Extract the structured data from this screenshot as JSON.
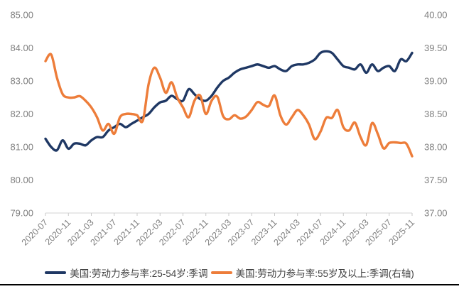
{
  "chart_data": {
    "type": "line",
    "title": "",
    "x": [
      "2020-07",
      "2020-08",
      "2020-09",
      "2020-10",
      "2020-11",
      "2020-12",
      "2021-01",
      "2021-02",
      "2021-03",
      "2021-04",
      "2021-05",
      "2021-06",
      "2021-07",
      "2021-08",
      "2021-09",
      "2021-10",
      "2021-11",
      "2021-12",
      "2022-01",
      "2022-02",
      "2022-03",
      "2022-04",
      "2022-05",
      "2022-06",
      "2022-07",
      "2022-08",
      "2022-09",
      "2022-10",
      "2022-11",
      "2022-12",
      "2023-01",
      "2023-02",
      "2023-03",
      "2023-04",
      "2023-05",
      "2023-06",
      "2023-07",
      "2023-08",
      "2023-09",
      "2023-10",
      "2023-11",
      "2023-12",
      "2024-01",
      "2024-02",
      "2024-03",
      "2024-04",
      "2024-05",
      "2024-06",
      "2024-07",
      "2024-08",
      "2024-09",
      "2024-10",
      "2024-11",
      "2024-12",
      "2025-01",
      "2025-02",
      "2025-03",
      "2025-04",
      "2025-05",
      "2025-06",
      "2025-07",
      "2025-08",
      "2025-09",
      "2025-10",
      "2025-11"
    ],
    "x_tick_labels": [
      "2020-07",
      "2020-11",
      "2021-03",
      "2021-07",
      "2021-11",
      "2022-03",
      "2022-07",
      "2022-11",
      "2023-03",
      "2023-07",
      "2023-11",
      "2024-03",
      "2024-07",
      "2024-11",
      "2025-03",
      "2025-07",
      "2025-11"
    ],
    "series": [
      {
        "name": "美国:劳动力参与率:25-54岁:季调",
        "axis": "left",
        "color": "#1f3864",
        "values": [
          81.25,
          81.0,
          80.9,
          81.2,
          80.95,
          81.1,
          81.1,
          81.05,
          81.2,
          81.3,
          81.3,
          81.5,
          81.6,
          81.7,
          81.6,
          81.7,
          81.8,
          81.9,
          82.0,
          82.2,
          82.35,
          82.4,
          82.55,
          82.45,
          82.4,
          82.75,
          82.6,
          82.45,
          82.4,
          82.55,
          82.8,
          83.0,
          83.1,
          83.25,
          83.35,
          83.4,
          83.45,
          83.5,
          83.45,
          83.4,
          83.45,
          83.35,
          83.3,
          83.45,
          83.5,
          83.5,
          83.55,
          83.65,
          83.85,
          83.9,
          83.85,
          83.65,
          83.45,
          83.4,
          83.35,
          83.5,
          83.25,
          83.5,
          83.3,
          83.4,
          83.45,
          83.3,
          83.65,
          83.6,
          83.85
        ]
      },
      {
        "name": "美国:劳动力参与率:55岁及以上:季调(右轴)",
        "axis": "right",
        "color": "#ed7d3a",
        "values": [
          39.3,
          39.4,
          39.05,
          38.8,
          38.75,
          38.75,
          38.77,
          38.7,
          38.6,
          38.45,
          38.25,
          38.35,
          38.2,
          38.45,
          38.5,
          38.5,
          38.48,
          38.4,
          38.95,
          39.2,
          39.05,
          38.82,
          38.98,
          38.75,
          38.6,
          38.45,
          38.7,
          38.78,
          38.5,
          38.7,
          38.76,
          38.47,
          38.42,
          38.48,
          38.43,
          38.46,
          38.56,
          38.68,
          38.64,
          38.62,
          38.78,
          38.48,
          38.34,
          38.45,
          38.56,
          38.48,
          38.34,
          38.12,
          38.23,
          38.44,
          38.44,
          38.56,
          38.3,
          38.25,
          38.37,
          38.15,
          38.03,
          38.36,
          38.2,
          37.98,
          38.06,
          38.07,
          38.06,
          38.05,
          37.86
        ]
      }
    ],
    "left_axis": {
      "min": 79.0,
      "max": 85.0,
      "ticks": [
        "85.00",
        "84.00",
        "83.00",
        "82.00",
        "81.00",
        "80.00",
        "79.00"
      ]
    },
    "right_axis": {
      "min": 37.0,
      "max": 40.0,
      "ticks": [
        "40.00",
        "39.50",
        "39.00",
        "38.50",
        "38.00",
        "37.50",
        "37.00"
      ]
    },
    "grid": false,
    "legend_position": "bottom"
  },
  "legend": {
    "items": [
      {
        "label": "美国:劳动力参与率:25-54岁:季调",
        "color": "#1f3864"
      },
      {
        "label": "美国:劳动力参与率:55岁及以上:季调(右轴)",
        "color": "#ed7d3a"
      }
    ]
  },
  "colors": {
    "axis_label": "#808080",
    "axis_line": "#d3d3d3",
    "tick_mark": "#c9c9c9",
    "legend_text": "#3f3f3f",
    "bottom_rule": "#000000",
    "background": "#ffffff"
  }
}
